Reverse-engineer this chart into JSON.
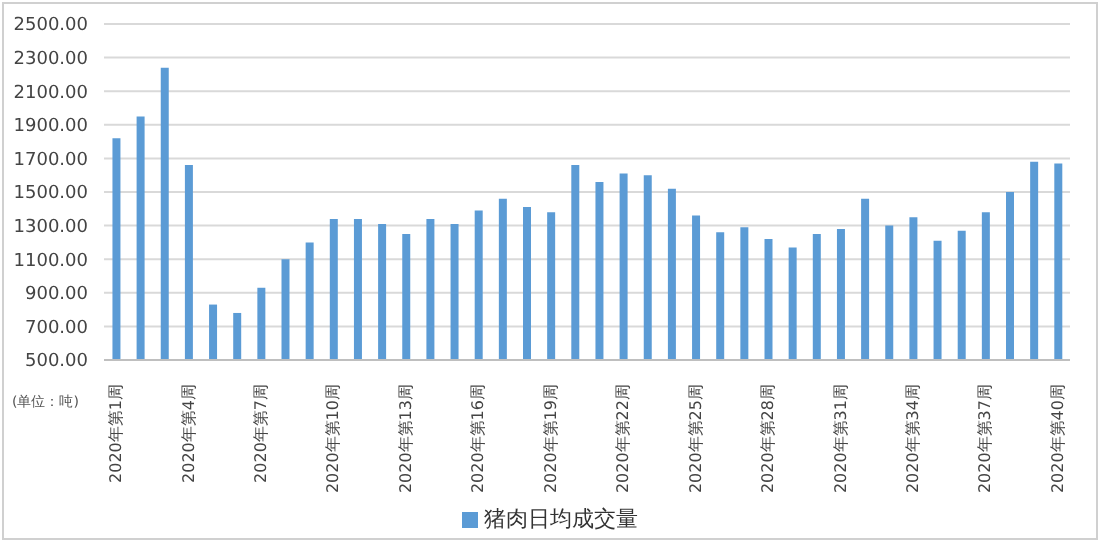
{
  "chart_data": {
    "type": "bar",
    "categories": [
      "2020年第1周",
      null,
      null,
      "2020年第4周",
      null,
      null,
      "2020年第7周",
      null,
      null,
      "2020年第10周",
      null,
      null,
      "2020年第13周",
      null,
      null,
      "2020年第16周",
      null,
      null,
      "2020年第19周",
      null,
      null,
      "2020年第22周",
      null,
      null,
      "2020年第25周",
      null,
      null,
      "2020年第28周",
      null,
      null,
      "2020年第31周",
      null,
      null,
      "2020年第34周",
      null,
      null,
      "2020年第37周",
      null,
      null,
      "2020年第40周"
    ],
    "series": [
      {
        "name": "猪肉日均成交量",
        "color": "#5b9bd5",
        "values": [
          1820,
          1950,
          2240,
          1660,
          830,
          780,
          930,
          1100,
          1200,
          1340,
          1340,
          1310,
          1250,
          1340,
          1310,
          1390,
          1460,
          1410,
          1380,
          1660,
          1560,
          1610,
          1600,
          1520,
          1360,
          1260,
          1290,
          1220,
          1170,
          1250,
          1280,
          1460,
          1300,
          1350,
          1210,
          1270,
          1380,
          1500,
          1680,
          1670
        ]
      }
    ],
    "ylim": [
      500,
      2500
    ],
    "yticks": [
      {
        "value": 500,
        "label": "500.00"
      },
      {
        "value": 700,
        "label": "700.00"
      },
      {
        "value": 900,
        "label": "900.00"
      },
      {
        "value": 1100,
        "label": "1100.00"
      },
      {
        "value": 1300,
        "label": "1300.00"
      },
      {
        "value": 1500,
        "label": "1500.00"
      },
      {
        "value": 1700,
        "label": "1700.00"
      },
      {
        "value": 1900,
        "label": "1900.00"
      },
      {
        "value": 2100,
        "label": "2100.00"
      },
      {
        "value": 2300,
        "label": "2300.00"
      },
      {
        "value": 2500,
        "label": "2500.00"
      }
    ],
    "grid": "y",
    "legend": "bottom",
    "annotations": [
      "(单位：吨)"
    ]
  }
}
